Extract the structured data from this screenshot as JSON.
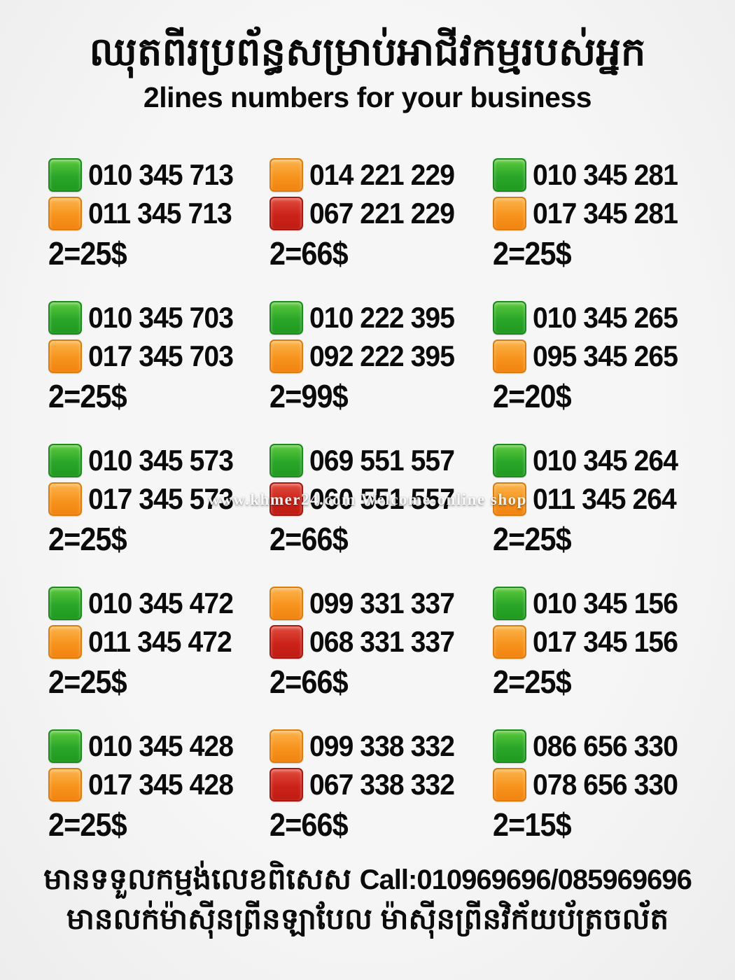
{
  "header": {
    "title_khmer": "ឈុតពីរប្រព័ន្ធសម្រាប់អាជីវកម្មរបស់អ្នក",
    "title_english": "2lines numbers for your business"
  },
  "colors": {
    "green": "#2aa629",
    "orange": "#f7941e",
    "red": "#cc2319",
    "text": "#0b0b0b",
    "background": "#f4f4f4"
  },
  "watermark": "www.khmer24.com Welcome-online shop",
  "cells": [
    {
      "lines": [
        {
          "color": "green",
          "number": "010 345 713"
        },
        {
          "color": "orange",
          "number": "011 345 713"
        }
      ],
      "price": "2=25$"
    },
    {
      "lines": [
        {
          "color": "orange",
          "number": "014 221 229"
        },
        {
          "color": "red",
          "number": "067 221 229"
        }
      ],
      "price": "2=66$"
    },
    {
      "lines": [
        {
          "color": "green",
          "number": "010 345 281"
        },
        {
          "color": "orange",
          "number": "017 345 281"
        }
      ],
      "price": "2=25$"
    },
    {
      "lines": [
        {
          "color": "green",
          "number": "010 345 703"
        },
        {
          "color": "orange",
          "number": "017 345 703"
        }
      ],
      "price": "2=25$"
    },
    {
      "lines": [
        {
          "color": "green",
          "number": "010 222 395"
        },
        {
          "color": "orange",
          "number": "092 222 395"
        }
      ],
      "price": "2=99$"
    },
    {
      "lines": [
        {
          "color": "green",
          "number": "010 345 265"
        },
        {
          "color": "orange",
          "number": "095 345 265"
        }
      ],
      "price": "2=20$"
    },
    {
      "lines": [
        {
          "color": "green",
          "number": "010 345 573"
        },
        {
          "color": "orange",
          "number": "017 345 573"
        }
      ],
      "price": "2=25$"
    },
    {
      "lines": [
        {
          "color": "green",
          "number": "069 551 557"
        },
        {
          "color": "red",
          "number": "060 551 557"
        }
      ],
      "price": "2=66$"
    },
    {
      "lines": [
        {
          "color": "green",
          "number": "010 345 264"
        },
        {
          "color": "orange",
          "number": "011 345 264"
        }
      ],
      "price": "2=25$"
    },
    {
      "lines": [
        {
          "color": "green",
          "number": "010 345 472"
        },
        {
          "color": "orange",
          "number": "011 345 472"
        }
      ],
      "price": "2=25$"
    },
    {
      "lines": [
        {
          "color": "orange",
          "number": "099 331 337"
        },
        {
          "color": "red",
          "number": "068 331 337"
        }
      ],
      "price": "2=66$"
    },
    {
      "lines": [
        {
          "color": "green",
          "number": "010 345 156"
        },
        {
          "color": "orange",
          "number": "017 345 156"
        }
      ],
      "price": "2=25$"
    },
    {
      "lines": [
        {
          "color": "green",
          "number": "010 345 428"
        },
        {
          "color": "orange",
          "number": "017 345 428"
        }
      ],
      "price": "2=25$"
    },
    {
      "lines": [
        {
          "color": "orange",
          "number": "099 338 332"
        },
        {
          "color": "red",
          "number": "067 338 332"
        }
      ],
      "price": "2=66$"
    },
    {
      "lines": [
        {
          "color": "green",
          "number": "086 656 330"
        },
        {
          "color": "orange",
          "number": "078 656 330"
        }
      ],
      "price": "2=15$"
    }
  ],
  "footer": {
    "order_text_khmer": "មានទទួលកម្មង់លេខពិសេស",
    "call_text": "Call:010969696/085969696",
    "printer_text_khmer": "មានលក់ម៉ាស៊ីនព្រីនឡាបែល ម៉ាស៊ីនព្រីនវិក័យប័ត្រចល័ត"
  }
}
